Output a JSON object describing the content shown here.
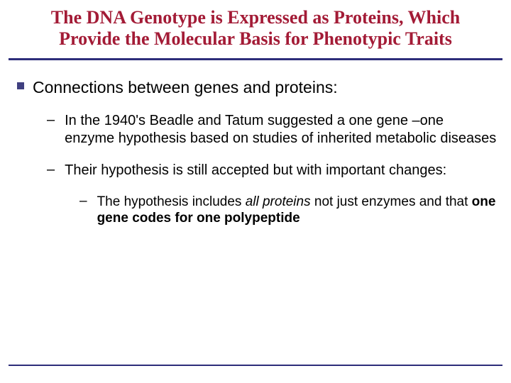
{
  "colors": {
    "title": "#a31b36",
    "divider": "#2d2d7a",
    "bullet": "#404080",
    "text": "#000000",
    "background": "#ffffff"
  },
  "title": "The DNA Genotype is Expressed as Proteins, Which Provide the Molecular Basis for Phenotypic Traits",
  "level1": {
    "text": "Connections between genes and proteins:"
  },
  "level2": [
    {
      "text": "In the 1940's Beadle and Tatum suggested a one gene –one enzyme hypothesis based on studies of inherited metabolic diseases"
    },
    {
      "text": "Their hypothesis is still accepted but with important changes:"
    }
  ],
  "level3": {
    "pre": "The hypothesis includes ",
    "italic": "all proteins",
    "mid": " not just enzymes and that ",
    "bold": "one gene codes for one polypeptide"
  }
}
